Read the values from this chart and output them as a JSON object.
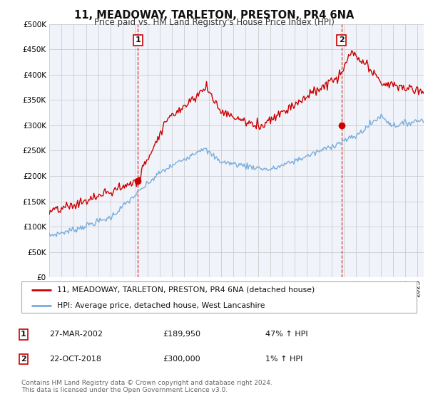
{
  "title": "11, MEADOWAY, TARLETON, PRESTON, PR4 6NA",
  "subtitle": "Price paid vs. HM Land Registry's House Price Index (HPI)",
  "ylabel_ticks": [
    "£0",
    "£50K",
    "£100K",
    "£150K",
    "£200K",
    "£250K",
    "£300K",
    "£350K",
    "£400K",
    "£450K",
    "£500K"
  ],
  "ylim": [
    0,
    500000
  ],
  "yticks": [
    0,
    50000,
    100000,
    150000,
    200000,
    250000,
    300000,
    350000,
    400000,
    450000,
    500000
  ],
  "xmin": 1995.0,
  "xmax": 2025.5,
  "red_color": "#cc0000",
  "blue_color": "#7aaddc",
  "vline_color": "#cc0000",
  "marker1_x": 2002.23,
  "marker1_y": 189950,
  "marker2_x": 2018.81,
  "marker2_y": 300000,
  "legend_label1": "11, MEADOWAY, TARLETON, PRESTON, PR4 6NA (detached house)",
  "legend_label2": "HPI: Average price, detached house, West Lancashire",
  "table_row1": [
    "1",
    "27-MAR-2002",
    "£189,950",
    "47% ↑ HPI"
  ],
  "table_row2": [
    "2",
    "22-OCT-2018",
    "£300,000",
    "1% ↑ HPI"
  ],
  "footnote1": "Contains HM Land Registry data © Crown copyright and database right 2024.",
  "footnote2": "This data is licensed under the Open Government Licence v3.0.",
  "background_color": "#ffffff",
  "grid_color": "#cccccc"
}
